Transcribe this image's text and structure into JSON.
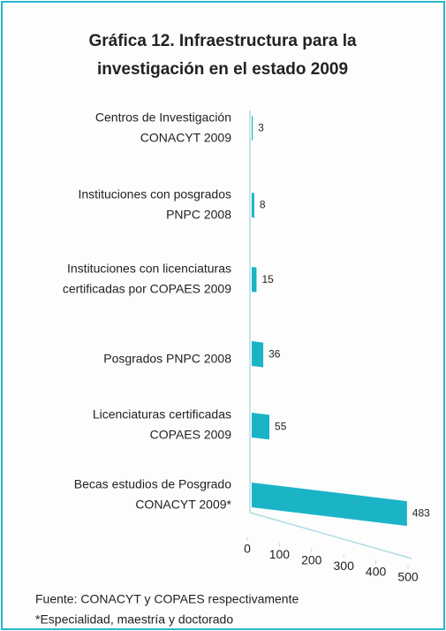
{
  "chart_data": {
    "type": "bar",
    "title": [
      "Gráfica 12. Infraestructura para la",
      "investigación en el estado 2009"
    ],
    "categories": [
      [
        "Centros de Investigación",
        "CONACYT 2009"
      ],
      [
        "Instituciones con posgrados",
        "PNPC 2008"
      ],
      [
        "Instituciones con licenciaturas",
        "certificadas por COPAES 2009"
      ],
      [
        "Posgrados PNPC 2008"
      ],
      [
        "Licenciaturas certificadas",
        "COPAES 2009"
      ],
      [
        "Becas estudios de Posgrado",
        "CONACYT 2009*"
      ]
    ],
    "values": [
      3,
      8,
      15,
      36,
      55,
      483
    ],
    "color": "#1ab4c6",
    "xlim": [
      0,
      500
    ],
    "xticks": [
      0,
      100,
      200,
      300,
      400,
      500
    ],
    "notes": [
      "Fuente: CONACYT y COPAES respectivamente",
      "*Especialidad, maestría y doctorado"
    ]
  }
}
